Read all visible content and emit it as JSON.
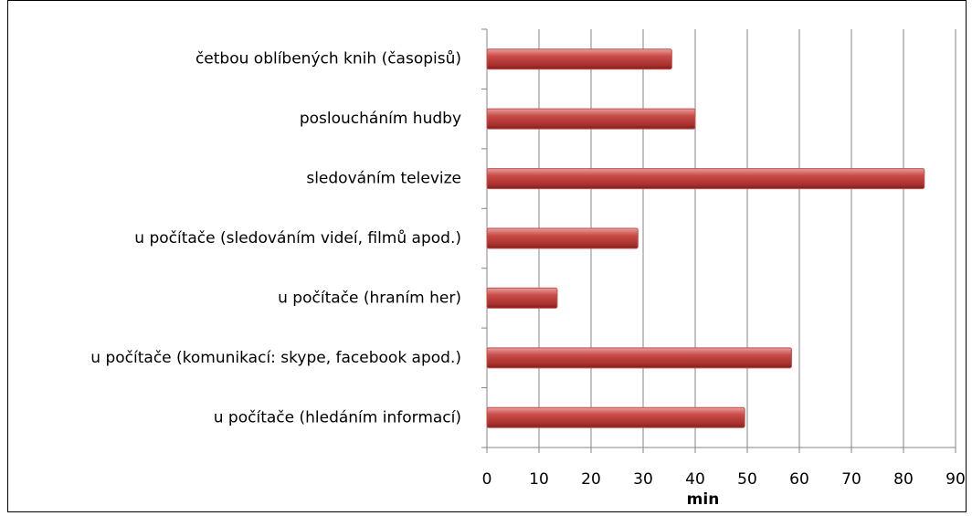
{
  "chart_data": {
    "type": "bar",
    "orientation": "horizontal",
    "categories": [
      "četbou oblíbených knih (časopisů)",
      "posloucháním hudby",
      "sledováním televize",
      "u počítače (sledováním videí, filmů apod.)",
      "u počítače (hraním her)",
      "u počítače (komunikací: skype, facebook apod.)",
      "u počítače (hledáním informací)"
    ],
    "values": [
      35.5,
      40,
      84,
      29,
      13.5,
      58.5,
      49.5
    ],
    "color": "#c0504d",
    "xlabel": "min",
    "xlim": [
      0,
      90
    ],
    "xticks": [
      0,
      10,
      20,
      30,
      40,
      50,
      60,
      70,
      80,
      90
    ],
    "grid": true
  }
}
